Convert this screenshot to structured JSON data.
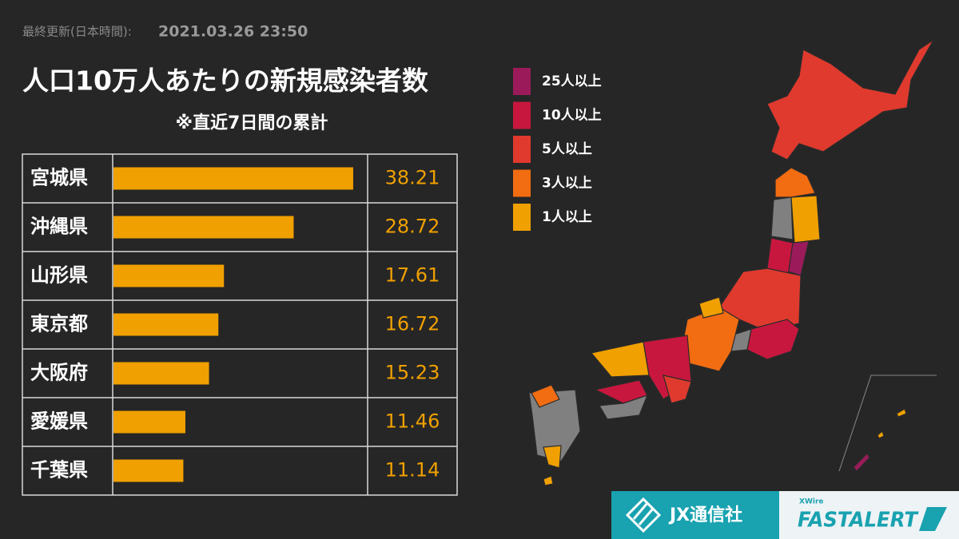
{
  "chart_data": {
    "type": "bar",
    "updated_label": "最終更新(日本時間):",
    "updated_at": "2021.03.26 23:50",
    "title": "人口10万人あたりの新規感染者数",
    "subtitle": "※直近7日間の累計",
    "categories": [
      "宮城県",
      "沖縄県",
      "山形県",
      "東京都",
      "大阪府",
      "愛媛県",
      "千葉県"
    ],
    "values": [
      38.21,
      28.72,
      17.61,
      16.72,
      15.23,
      11.46,
      11.14
    ],
    "color": "#f0a000",
    "xlim": [
      0,
      40
    ],
    "legend": [
      {
        "name": "25人以上",
        "color": "#9b1b5a"
      },
      {
        "name": "10人以上",
        "color": "#c8173e"
      },
      {
        "name": "5人以上",
        "color": "#e03a2e"
      },
      {
        "name": "3人以上",
        "color": "#f26c12"
      },
      {
        "name": "1人以上",
        "color": "#f0a000"
      }
    ],
    "no_data_color": "#808080",
    "logos": {
      "jx": "JX通信社",
      "xwire": "XWire",
      "fastalert": "FASTALERT"
    }
  }
}
